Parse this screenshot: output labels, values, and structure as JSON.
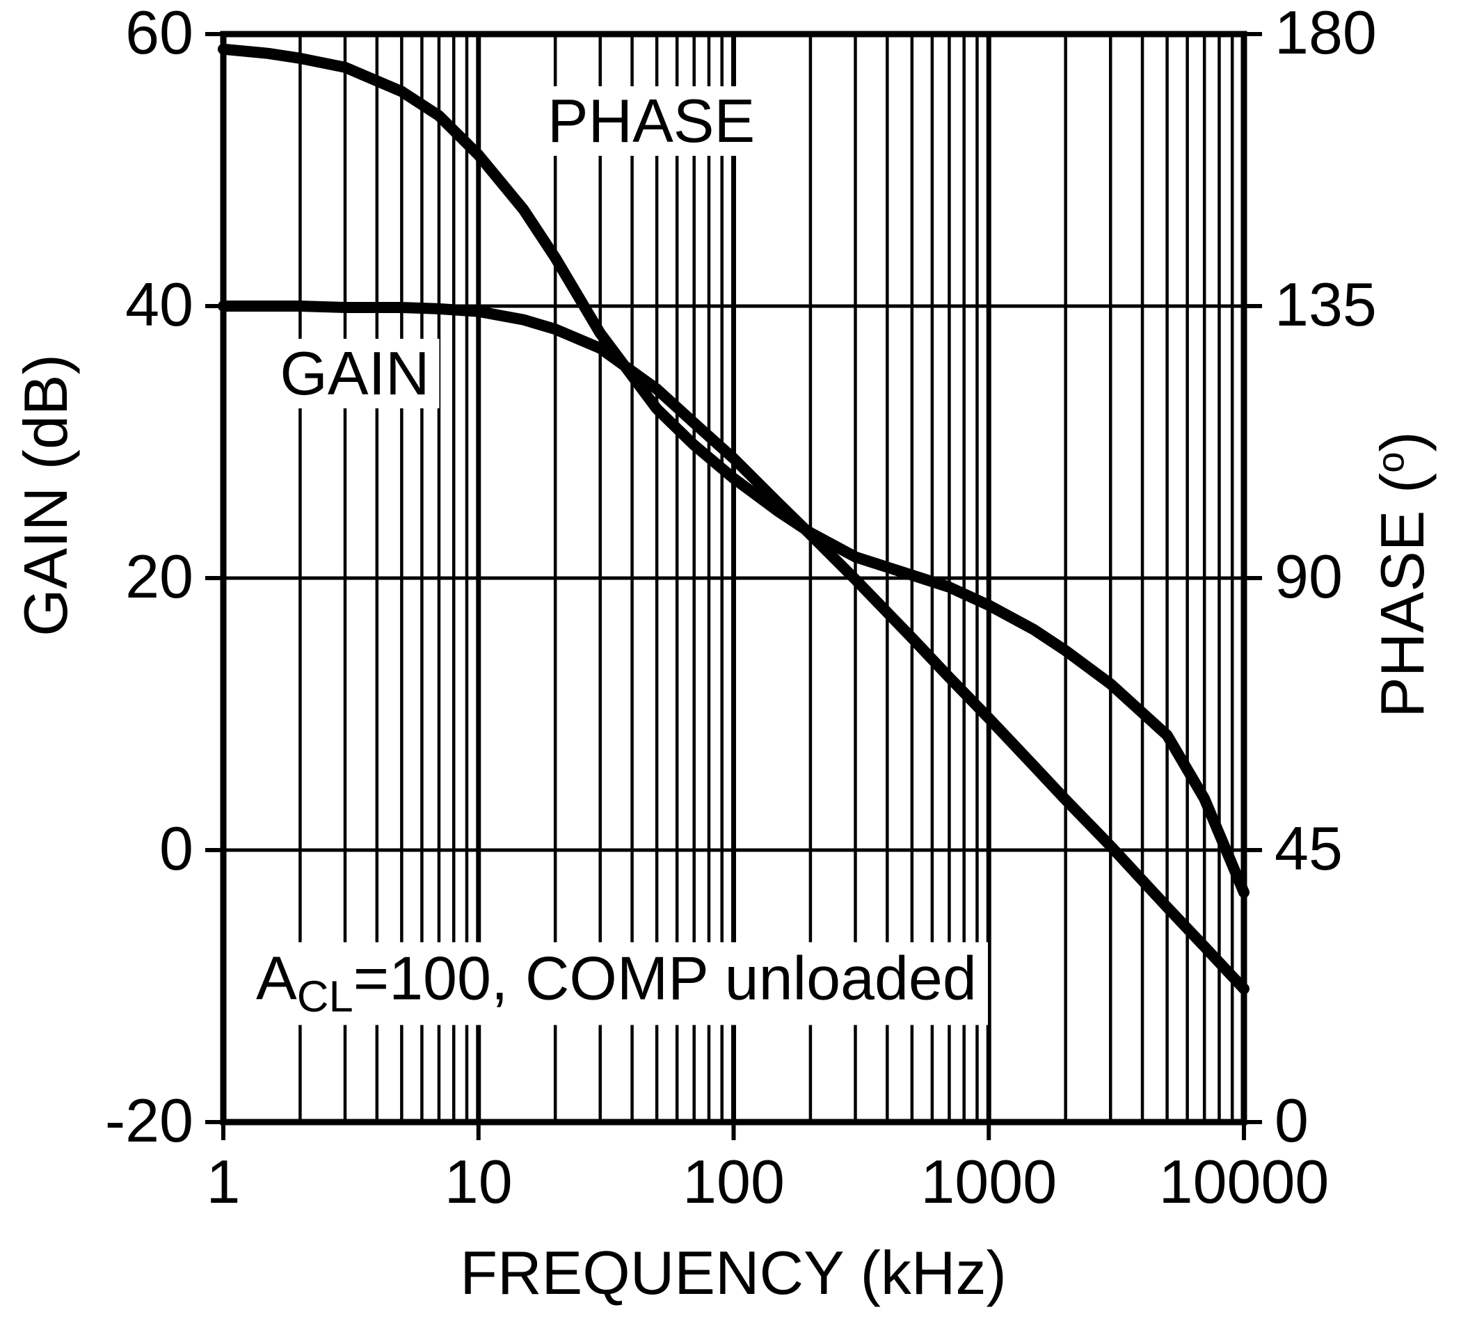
{
  "chart_data": {
    "type": "line",
    "title": "",
    "x_axis": {
      "label": "FREQUENCY (kHz)",
      "scale": "log",
      "range": [
        1,
        10000
      ],
      "ticks": [
        1,
        10,
        100,
        1000,
        10000
      ],
      "minor_gridlines": true
    },
    "y_left_axis": {
      "label": "GAIN (dB)",
      "range": [
        -20,
        60
      ],
      "ticks": [
        60,
        40,
        20,
        0,
        -20
      ]
    },
    "y_right_axis": {
      "label_text": "PHASE (",
      "label_degree_sup": "o",
      "label_close": ")",
      "range": [
        0,
        180
      ],
      "ticks": [
        180,
        135,
        90,
        45,
        0
      ]
    },
    "grid": true,
    "line_color": "#000000",
    "series": [
      {
        "name": "GAIN",
        "axis": "left",
        "units": "dB",
        "x": [
          1,
          1.5,
          2,
          3,
          5,
          7,
          10,
          15,
          20,
          30,
          50,
          70,
          100,
          150,
          200,
          300,
          500,
          700,
          1000,
          1500,
          2000,
          3000,
          5000,
          7000,
          10000
        ],
        "y": [
          40,
          40,
          40,
          39.9,
          39.9,
          39.8,
          39.6,
          39.0,
          38.3,
          36.9,
          33.9,
          31.4,
          28.8,
          25.5,
          23.2,
          19.9,
          15.6,
          12.7,
          9.7,
          6.2,
          3.7,
          0.3,
          -4.2,
          -7.1,
          -10.2
        ]
      },
      {
        "name": "PHASE",
        "axis": "right",
        "units": "deg",
        "x": [
          1,
          1.5,
          2,
          3,
          5,
          7,
          10,
          15,
          20,
          30,
          50,
          70,
          100,
          150,
          200,
          300,
          500,
          700,
          1000,
          1500,
          2000,
          3000,
          5000,
          7000,
          10000
        ],
        "y": [
          177.5,
          176.8,
          176.0,
          174.5,
          170.5,
          166.5,
          160.0,
          151.0,
          143.0,
          130.5,
          118.0,
          112.0,
          106.5,
          101.0,
          97.5,
          93.5,
          90.5,
          88.5,
          85.5,
          81.5,
          78.0,
          72.5,
          64.0,
          53.5,
          38.0
        ]
      }
    ],
    "curve_labels": {
      "gain": "GAIN",
      "phase": "PHASE"
    },
    "annotation": {
      "var": "A",
      "sub": "CL",
      "rest": "=100, COMP unloaded"
    }
  }
}
